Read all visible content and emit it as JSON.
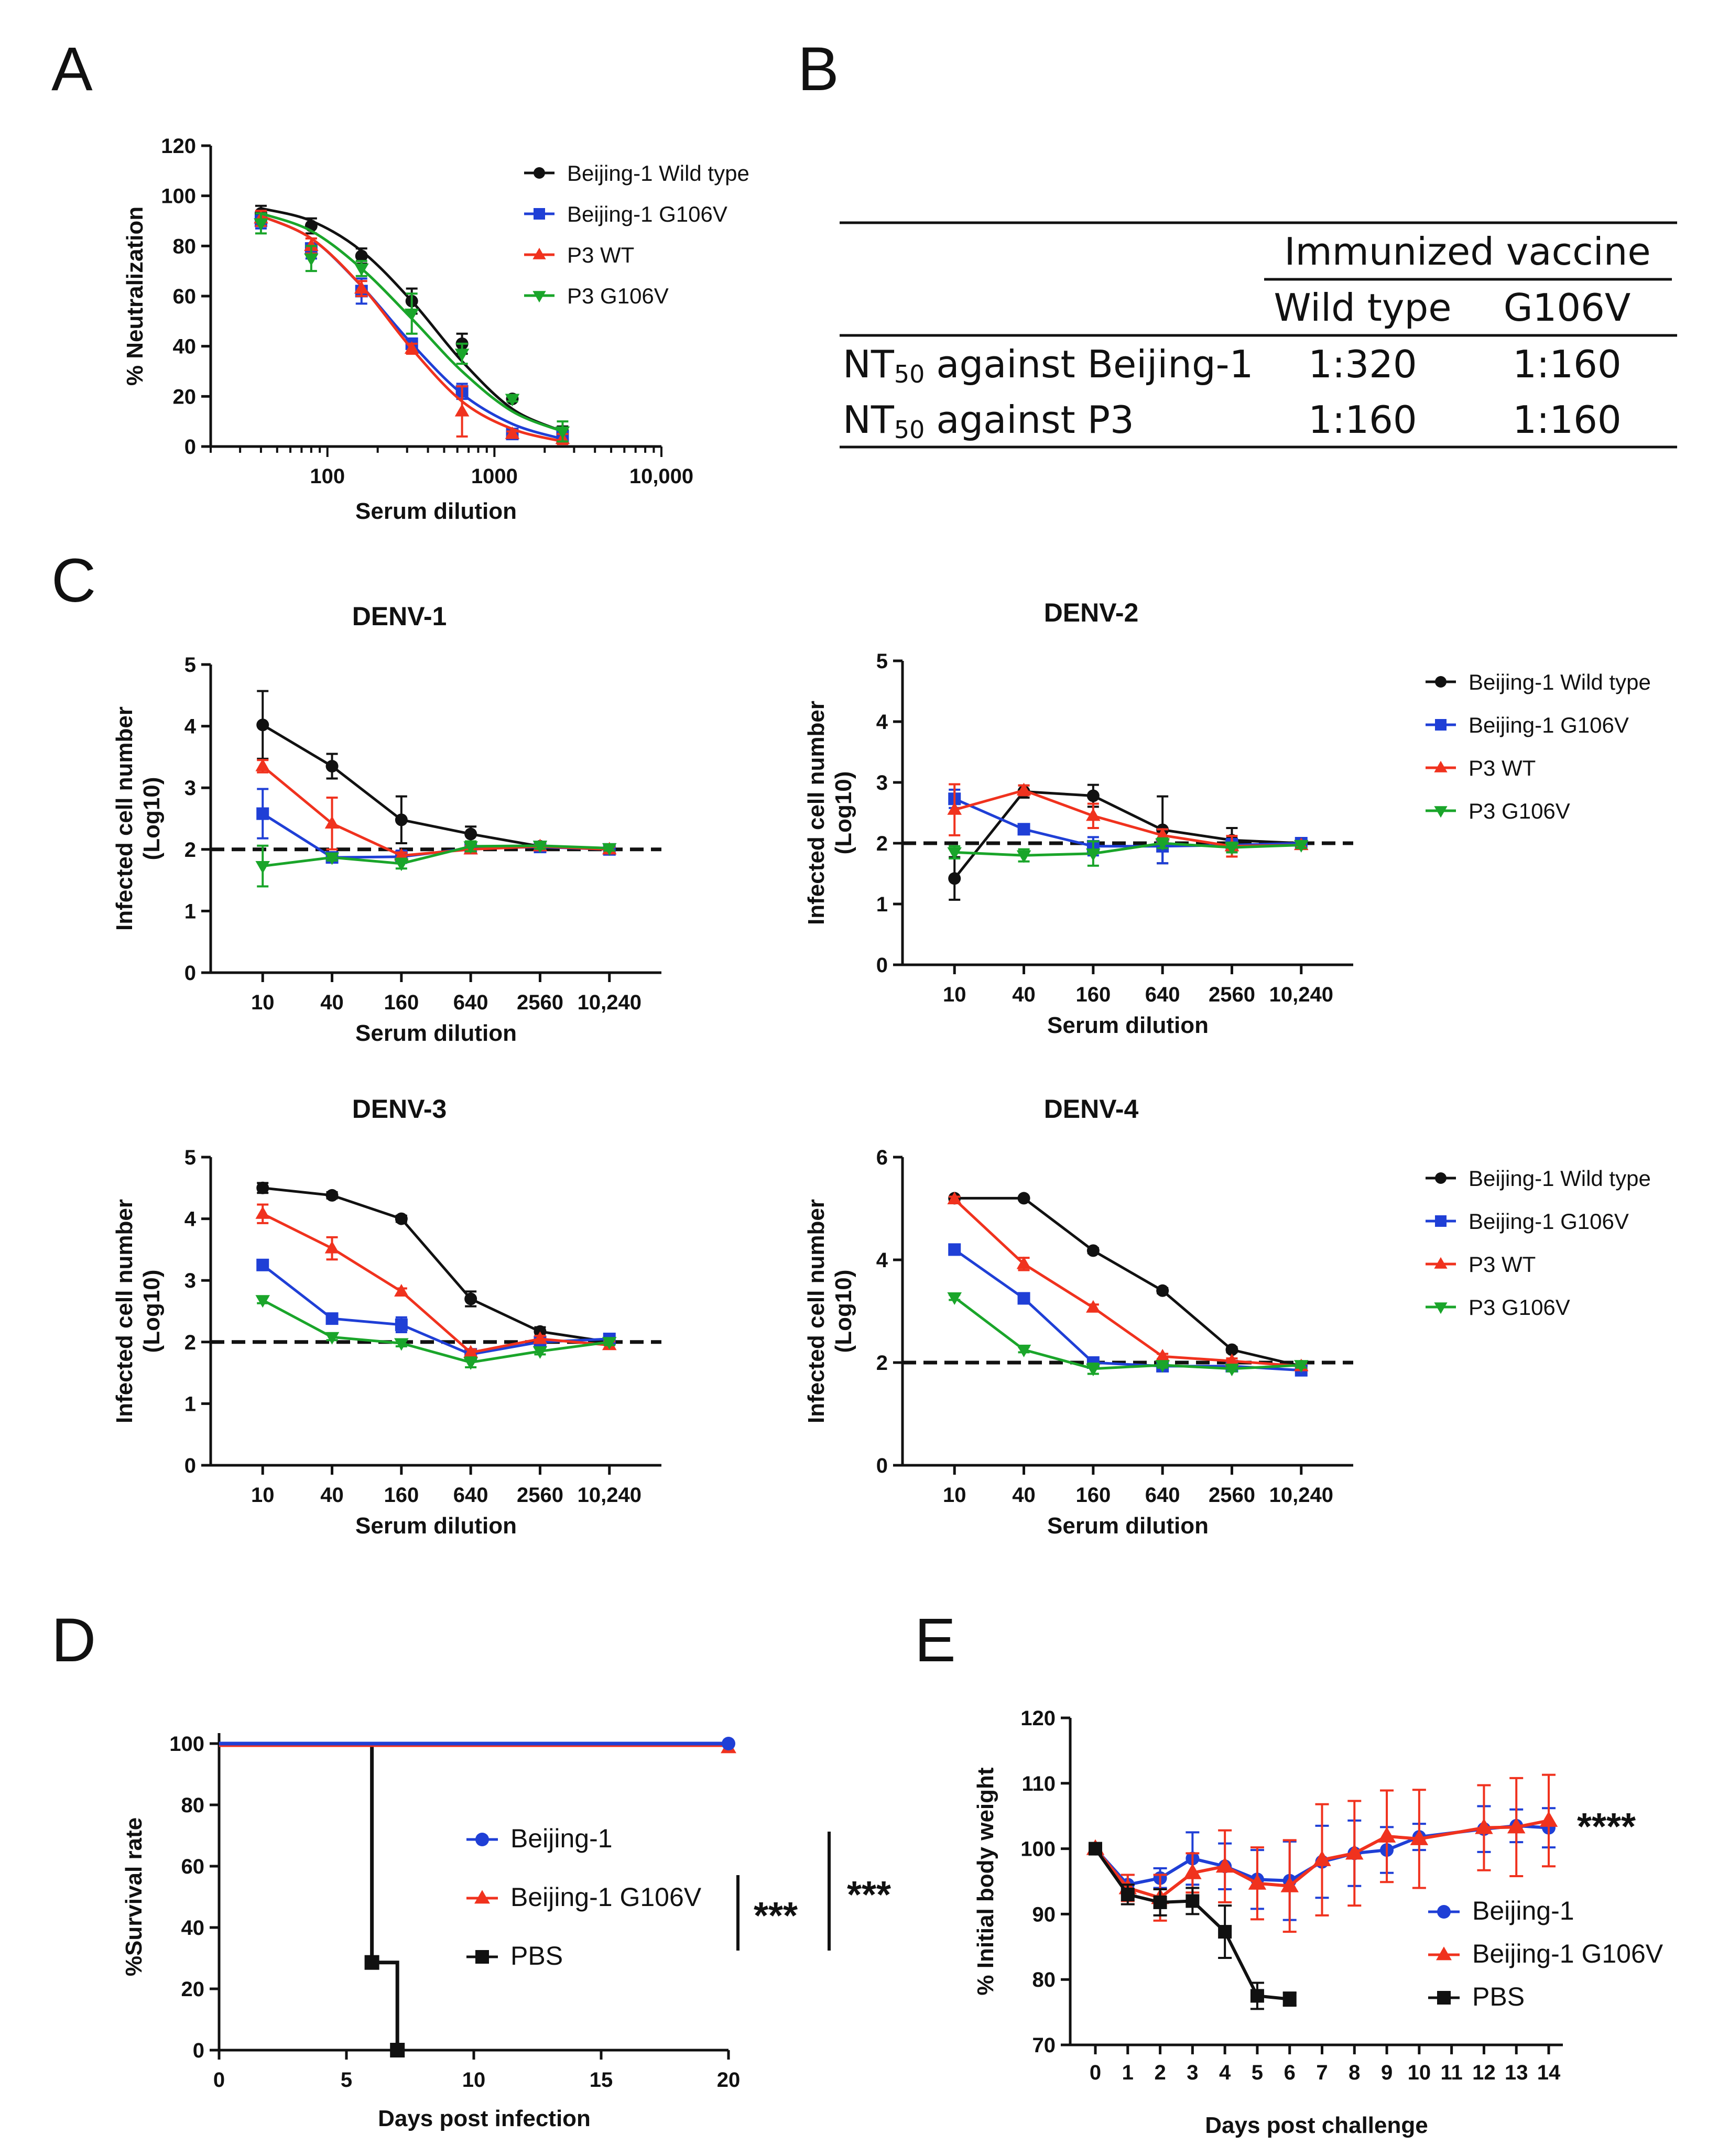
{
  "colors": {
    "wt": "#111111",
    "g106v": "#1f3fd6",
    "p3wt": "#f0321e",
    "p3g106v": "#1aa52a",
    "beijing1": "#1f3fd6",
    "beijing1g106v": "#f0321e",
    "pbs": "#111111"
  },
  "panels": {
    "A": "A",
    "B": "B",
    "C": "C",
    "D": "D",
    "E": "E"
  },
  "table": {
    "header": "Immunized vaccine",
    "col1": "Wild type",
    "col2": "G106V",
    "rows": [
      {
        "label_pre": "NT",
        "label_sub": "50",
        "label_post": "against Beijing-1",
        "v1": "1:320",
        "v2": "1:160"
      },
      {
        "label_pre": "NT",
        "label_sub": "50",
        "label_post": "against P3",
        "v1": "1:160",
        "v2": "1:160"
      }
    ]
  },
  "chart_data": [
    {
      "id": "A",
      "type": "line",
      "xscale": "log",
      "xlabel": "Serum dilution",
      "ylabel": "% Neutralization",
      "xlim": [
        20,
        10000
      ],
      "ylim": [
        0,
        120
      ],
      "xticks": [
        {
          "v": 100,
          "label": "100"
        },
        {
          "v": 1000,
          "label": "1000"
        },
        {
          "v": 10000,
          "label": "10,000"
        }
      ],
      "yticks": [
        0,
        20,
        40,
        60,
        80,
        100,
        120
      ],
      "legend": [
        "Beijing-1 Wild type",
        "Beijing-1 G106V",
        "P3 WT",
        "P3 G106V"
      ],
      "series": [
        {
          "name": "Beijing-1 Wild type",
          "color": "wt",
          "marker": "circle",
          "x": [
            40,
            80,
            160,
            320,
            640,
            1280,
            2560
          ],
          "y": [
            93,
            88,
            76,
            58,
            41,
            19,
            6
          ],
          "err": [
            3,
            3,
            3,
            5,
            4,
            1,
            2
          ],
          "fit": [
            95,
            90,
            78,
            58,
            34,
            15,
            6
          ]
        },
        {
          "name": "Beijing-1 G106V",
          "color": "g106v",
          "marker": "square",
          "x": [
            40,
            80,
            160,
            320,
            640,
            1280,
            2560
          ],
          "y": [
            90,
            79,
            62,
            41,
            22,
            5,
            4
          ],
          "err": [
            3,
            4,
            5,
            2,
            3,
            1,
            1
          ],
          "fit": [
            92,
            83,
            64,
            41,
            21,
            9,
            3
          ]
        },
        {
          "name": "P3 WT",
          "color": "p3wt",
          "marker": "tri-up",
          "x": [
            40,
            80,
            160,
            320,
            640,
            1280,
            2560
          ],
          "y": [
            91,
            80,
            63,
            39,
            14,
            5,
            3
          ],
          "err": [
            3,
            3,
            3,
            2,
            10,
            1,
            2
          ],
          "fit": [
            92,
            83,
            64,
            39,
            18,
            7,
            2
          ]
        },
        {
          "name": "P3 G106V",
          "color": "p3g106v",
          "marker": "tri-down",
          "x": [
            40,
            80,
            160,
            320,
            640,
            1280,
            2560
          ],
          "y": [
            89,
            75,
            71,
            53,
            37,
            19,
            6
          ],
          "err": [
            4,
            5,
            3,
            8,
            4,
            1,
            4
          ],
          "fit": [
            93,
            86,
            71,
            51,
            30,
            14,
            6
          ]
        }
      ]
    },
    {
      "id": "C1",
      "type": "line",
      "title": "DENV-1",
      "xlabel": "Serum dilution",
      "ylabel": "Infected cell number",
      "ylabel2": "(Log10)",
      "ylim": [
        0,
        5
      ],
      "yticks": [
        0,
        1,
        2,
        3,
        4,
        5
      ],
      "threshold": 2,
      "categories": [
        "10",
        "40",
        "160",
        "640",
        "2560",
        "10,240"
      ],
      "series": [
        {
          "name": "Beijing-1 Wild type",
          "color": "wt",
          "marker": "circle",
          "values": [
            4.02,
            3.35,
            2.48,
            2.25,
            2.05,
            2.0
          ],
          "err": [
            0.55,
            0.2,
            0.38,
            0.12,
            0.05,
            0.05
          ]
        },
        {
          "name": "Beijing-1 G106V",
          "color": "g106v",
          "marker": "square",
          "values": [
            2.58,
            1.87,
            1.88,
            2.02,
            2.04,
            2.0
          ],
          "err": [
            0.4,
            0.05,
            0.1,
            0.08,
            0.05,
            0.05
          ]
        },
        {
          "name": "P3 WT",
          "color": "p3wt",
          "marker": "tri-up",
          "values": [
            3.35,
            2.42,
            1.9,
            2.0,
            2.05,
            2.0
          ],
          "err": [
            0.1,
            0.42,
            0.05,
            0.06,
            0.04,
            0.04
          ]
        },
        {
          "name": "P3 G106V",
          "color": "p3g106v",
          "marker": "tri-down",
          "values": [
            1.73,
            1.87,
            1.77,
            2.05,
            2.06,
            2.02
          ],
          "err": [
            0.33,
            0.05,
            0.08,
            0.08,
            0.05,
            0.04
          ]
        }
      ]
    },
    {
      "id": "C2",
      "type": "line",
      "title": "DENV-2",
      "xlabel": "Serum dilution",
      "ylabel": "Infected cell number",
      "ylabel2": "(Log10)",
      "ylim": [
        0,
        5
      ],
      "yticks": [
        0,
        1,
        2,
        3,
        4,
        5
      ],
      "threshold": 2,
      "categories": [
        "10",
        "40",
        "160",
        "640",
        "2560",
        "10,240"
      ],
      "legend": [
        "Beijing-1 Wild type",
        "Beijing-1 G106V",
        "P3 WT",
        "P3 G106V"
      ],
      "series": [
        {
          "name": "Beijing-1 Wild type",
          "color": "wt",
          "marker": "circle",
          "values": [
            1.42,
            2.85,
            2.78,
            2.22,
            2.05,
            2.0
          ],
          "err": [
            0.35,
            0.1,
            0.18,
            0.55,
            0.2,
            0.05
          ]
        },
        {
          "name": "Beijing-1 G106V",
          "color": "g106v",
          "marker": "square",
          "values": [
            2.73,
            2.23,
            1.95,
            1.95,
            1.97,
            2.0
          ],
          "err": [
            0.15,
            0.06,
            0.15,
            0.28,
            0.1,
            0.05
          ]
        },
        {
          "name": "P3 WT",
          "color": "p3wt",
          "marker": "tri-up",
          "values": [
            2.55,
            2.87,
            2.45,
            2.13,
            1.95,
            1.97
          ],
          "err": [
            0.42,
            0.08,
            0.2,
            0.1,
            0.17,
            0.05
          ]
        },
        {
          "name": "P3 G106V",
          "color": "p3g106v",
          "marker": "tri-down",
          "values": [
            1.85,
            1.8,
            1.83,
            2.0,
            1.93,
            1.97
          ],
          "err": [
            0.1,
            0.1,
            0.2,
            0.08,
            0.08,
            0.05
          ]
        }
      ]
    },
    {
      "id": "C3",
      "type": "line",
      "title": "DENV-3",
      "xlabel": "Serum dilution",
      "ylabel": "Infected cell number",
      "ylabel2": "(Log10)",
      "ylim": [
        0,
        5
      ],
      "yticks": [
        0,
        1,
        2,
        3,
        4,
        5
      ],
      "threshold": 2,
      "categories": [
        "10",
        "40",
        "160",
        "640",
        "2560",
        "10,240"
      ],
      "series": [
        {
          "name": "Beijing-1 Wild type",
          "color": "wt",
          "marker": "circle",
          "values": [
            4.5,
            4.38,
            4.0,
            2.7,
            2.17,
            2.0
          ],
          "err": [
            0.08,
            0.05,
            0.05,
            0.12,
            0.07,
            0.05
          ]
        },
        {
          "name": "Beijing-1 G106V",
          "color": "g106v",
          "marker": "square",
          "values": [
            3.25,
            2.38,
            2.28,
            1.8,
            2.0,
            2.05
          ],
          "err": [
            0.05,
            0.05,
            0.12,
            0.06,
            0.05,
            0.05
          ]
        },
        {
          "name": "P3 WT",
          "color": "p3wt",
          "marker": "tri-up",
          "values": [
            4.08,
            3.52,
            2.82,
            1.83,
            2.05,
            1.95
          ],
          "err": [
            0.15,
            0.18,
            0.05,
            0.05,
            0.05,
            0.06
          ]
        },
        {
          "name": "P3 G106V",
          "color": "p3g106v",
          "marker": "tri-down",
          "values": [
            2.68,
            2.08,
            1.98,
            1.67,
            1.85,
            2.0
          ],
          "err": [
            0.05,
            0.05,
            0.05,
            0.08,
            0.05,
            0.05
          ]
        }
      ]
    },
    {
      "id": "C4",
      "type": "line",
      "title": "DENV-4",
      "xlabel": "Serum dilution",
      "ylabel": "Infected cell number",
      "ylabel2": "(Log10)",
      "ylim": [
        0,
        6
      ],
      "yticks": [
        0,
        2,
        4,
        6
      ],
      "threshold": 2,
      "categories": [
        "10",
        "40",
        "160",
        "640",
        "2560",
        "10,240"
      ],
      "legend": [
        "Beijing-1 Wild type",
        "Beijing-1 G106V",
        "P3 WT",
        "P3 G106V"
      ],
      "series": [
        {
          "name": "Beijing-1 Wild type",
          "color": "wt",
          "marker": "circle",
          "values": [
            5.2,
            5.2,
            4.18,
            3.4,
            2.25,
            1.93
          ],
          "err": [
            0.03,
            0.03,
            0.05,
            0.05,
            0.05,
            0.05
          ]
        },
        {
          "name": "Beijing-1 G106V",
          "color": "g106v",
          "marker": "square",
          "values": [
            4.2,
            3.25,
            2.0,
            1.93,
            1.93,
            1.85
          ],
          "err": [
            0.05,
            0.06,
            0.05,
            0.05,
            0.05,
            0.05
          ]
        },
        {
          "name": "P3 WT",
          "color": "p3wt",
          "marker": "tri-up",
          "values": [
            5.18,
            3.92,
            3.07,
            2.12,
            2.03,
            1.93
          ],
          "err": [
            0.05,
            0.12,
            0.06,
            0.05,
            0.05,
            0.05
          ]
        },
        {
          "name": "P3 G106V",
          "color": "p3g106v",
          "marker": "tri-down",
          "values": [
            3.27,
            2.25,
            1.88,
            1.95,
            1.88,
            1.95
          ],
          "err": [
            0.05,
            0.05,
            0.1,
            0.05,
            0.05,
            0.05
          ]
        }
      ]
    },
    {
      "id": "D",
      "type": "line",
      "subtype": "survival",
      "xlabel": "Days post infection",
      "ylabel": "%Survival rate",
      "xlim": [
        0,
        20
      ],
      "ylim": [
        0,
        100
      ],
      "xticks": [
        0,
        5,
        10,
        15,
        20
      ],
      "yticks": [
        0,
        20,
        40,
        60,
        80,
        100
      ],
      "legend": [
        "Beijing-1",
        "Beijing-1 G106V",
        "PBS"
      ],
      "series": [
        {
          "name": "Beijing-1",
          "color": "beijing1",
          "marker": "circle",
          "x": [
            0,
            20
          ],
          "y": [
            100,
            100
          ]
        },
        {
          "name": "Beijing-1 G106V",
          "color": "beijing1g106v",
          "marker": "tri-up",
          "x": [
            0,
            20
          ],
          "y": [
            100,
            100
          ]
        },
        {
          "name": "PBS",
          "color": "pbs",
          "marker": "square",
          "x": [
            0,
            6,
            6,
            7,
            7
          ],
          "y": [
            100,
            100,
            28.6,
            28.6,
            0
          ]
        }
      ],
      "significance": [
        "***",
        "***"
      ]
    },
    {
      "id": "E",
      "type": "line",
      "xlabel": "Days post challenge",
      "ylabel": "% Initial body weight",
      "xlim": [
        0,
        14
      ],
      "ylim": [
        70,
        120
      ],
      "yticks": [
        70,
        80,
        90,
        100,
        110,
        120
      ],
      "xticks": [
        0,
        1,
        2,
        3,
        4,
        5,
        6,
        7,
        8,
        9,
        10,
        11,
        12,
        13,
        14
      ],
      "legend": [
        "Beijing-1",
        "Beijing-1 G106V",
        "PBS"
      ],
      "series": [
        {
          "name": "Beijing-1",
          "color": "beijing1",
          "marker": "circle",
          "x": [
            0,
            1,
            2,
            3,
            4,
            5,
            6,
            7,
            8,
            9,
            10,
            12,
            13,
            14
          ],
          "y": [
            100,
            94.5,
            95.5,
            98.5,
            97.3,
            95.3,
            95.1,
            98,
            99.3,
            99.8,
            101.8,
            103,
            103.5,
            103.2
          ],
          "err": [
            0,
            1.5,
            1.5,
            4,
            3.5,
            4.5,
            6,
            5.5,
            5,
            3.5,
            2,
            3.5,
            2.5,
            3
          ]
        },
        {
          "name": "Beijing-1 G106V",
          "color": "beijing1g106v",
          "marker": "tri-up",
          "x": [
            0,
            1,
            2,
            3,
            4,
            5,
            6,
            7,
            8,
            9,
            10,
            12,
            13,
            14
          ],
          "y": [
            100,
            94,
            92.5,
            96.3,
            97.3,
            94.7,
            94.3,
            98.3,
            99.3,
            101.9,
            101.5,
            103.2,
            103.3,
            104.3
          ],
          "err": [
            0,
            2,
            3.5,
            3,
            5.5,
            5.5,
            7,
            8.5,
            8,
            7,
            7.5,
            6.5,
            7.5,
            7
          ]
        },
        {
          "name": "PBS",
          "color": "pbs",
          "marker": "square",
          "x": [
            0,
            1,
            2,
            3,
            4,
            5,
            6
          ],
          "y": [
            100,
            93,
            91.8,
            92,
            87.3,
            77.5,
            77
          ],
          "err": [
            0,
            1.5,
            2,
            2,
            4,
            2,
            1
          ]
        }
      ],
      "significance": "****"
    }
  ]
}
